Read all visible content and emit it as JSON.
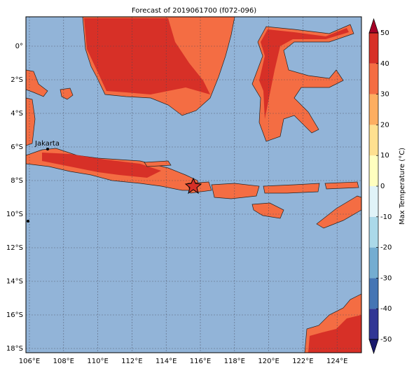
{
  "title": "Forecast of 2019061700 (f072-096)",
  "map": {
    "lat_labels": [
      "0°",
      "2°S",
      "4°S",
      "6°S",
      "8°S",
      "10°S",
      "12°S",
      "14°S",
      "16°S",
      "18°S"
    ],
    "lon_labels": [
      "106°E",
      "108°E",
      "110°E",
      "112°E",
      "114°E",
      "116°E",
      "118°E",
      "120°E",
      "122°E",
      "124°E"
    ],
    "places": [
      {
        "name": "Jakarta"
      }
    ]
  },
  "colorbar": {
    "label": "Max Temperature (°C)",
    "ticks": [
      -50,
      -40,
      -30,
      -20,
      -10,
      0,
      10,
      20,
      30,
      40,
      50
    ],
    "colors": [
      "#313695",
      "#4575b4",
      "#74add1",
      "#abd9e9",
      "#e0f3f8",
      "#ffffbf",
      "#fee090",
      "#fdae61",
      "#f46d43",
      "#d73027"
    ],
    "under": "#1a1a6e",
    "over": "#a50026"
  }
}
